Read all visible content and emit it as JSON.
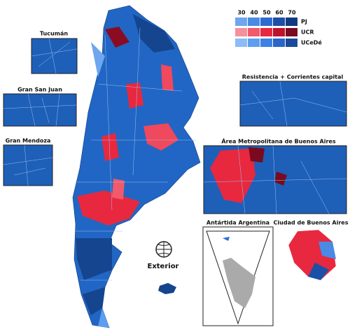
{
  "legend": {
    "thresholds": [
      30,
      40,
      50,
      60,
      70
    ],
    "parties": [
      {
        "name": "PJ",
        "label_color": "#2a6fd6",
        "colors": [
          "#6ea6ef",
          "#4a8ae4",
          "#2c6ccf",
          "#1c50a8",
          "#123a80"
        ]
      },
      {
        "name": "UCR",
        "label_color": "#e8203a",
        "colors": [
          "#f5909c",
          "#f05a6a",
          "#e8283e",
          "#c0122c",
          "#7a0a1e"
        ]
      },
      {
        "name": "UCeDé",
        "label_color": "#3a82e8",
        "colors": [
          "#8cbcf5",
          "#5e9ef0",
          "#3c82e4",
          "#2a66c8",
          "#1a4a9c"
        ]
      }
    ]
  },
  "insets": {
    "tucuman": "Tucumán",
    "san_juan": "Gran San Juan",
    "mendoza": "Gran Mendoza",
    "resistencia": "Resistencia + Corrientes capital",
    "amba": "Área Metropolitana de Buenos Aires",
    "antartida": "Antártida Argentina",
    "caba": "Ciudad de Buenos Aires"
  },
  "exterior": "Exterior"
}
